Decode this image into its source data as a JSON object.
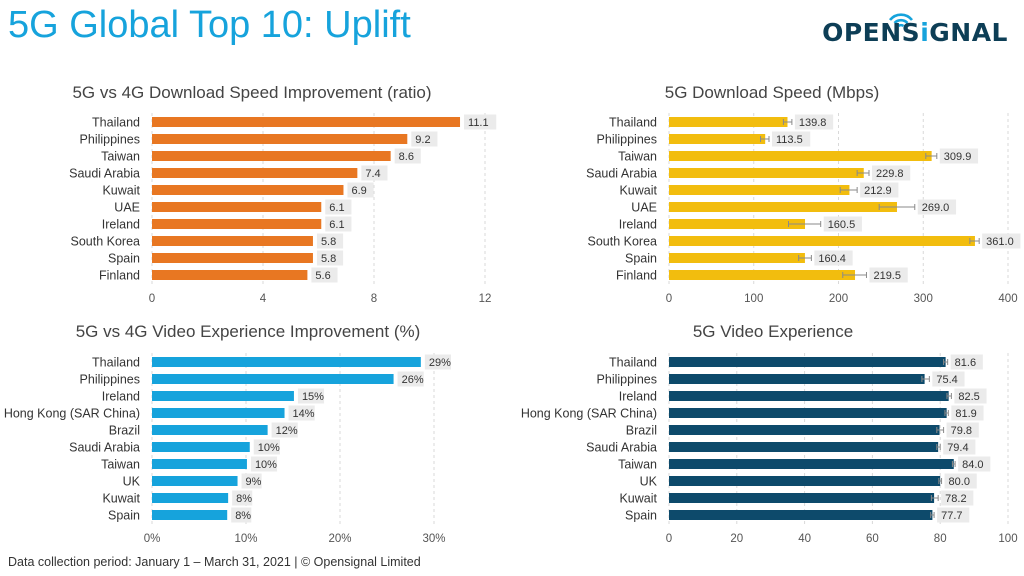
{
  "header": {
    "title": "5G Global Top 10: Uplift",
    "logo": {
      "text_before": "OPENS",
      "text_i": "i",
      "text_after": "GNAL",
      "icon": "signal-wifi-icon"
    }
  },
  "footer": {
    "text": "Data collection period: January 1 – March 31, 2021  |  © Opensignal Limited"
  },
  "colors": {
    "title": "#16a3dc",
    "orange": "#e87722",
    "yellow": "#f2bd0e",
    "cyan": "#16a3dc",
    "navy": "#0d4a6b",
    "label_bg": "#ebebeb",
    "logo": "#0d3e56"
  },
  "chart_data": [
    {
      "id": "c1",
      "type": "bar",
      "orientation": "horizontal",
      "title": "5G vs 4G Download Speed Improvement (ratio)",
      "categories": [
        "Thailand",
        "Philippines",
        "Taiwan",
        "Saudi Arabia",
        "Kuwait",
        "UAE",
        "Ireland",
        "South Korea",
        "Spain",
        "Finland"
      ],
      "values": [
        11.1,
        9.2,
        8.6,
        7.4,
        6.9,
        6.1,
        6.1,
        5.8,
        5.8,
        5.6
      ],
      "labels": [
        "11.1",
        "9.2",
        "8.6",
        "7.4",
        "6.9",
        "6.1",
        "6.1",
        "5.8",
        "5.8",
        "5.6"
      ],
      "xlim": [
        0,
        12
      ],
      "ticks": [
        0,
        4,
        8,
        12
      ],
      "tick_labels": [
        "0",
        "4",
        "8",
        "12"
      ],
      "color": "#e87722",
      "grid": true,
      "error_bars": false
    },
    {
      "id": "c2",
      "type": "bar",
      "orientation": "horizontal",
      "title": "5G Download Speed (Mbps)",
      "categories": [
        "Thailand",
        "Philippines",
        "Taiwan",
        "Saudi Arabia",
        "Kuwait",
        "UAE",
        "Ireland",
        "South Korea",
        "Spain",
        "Finland"
      ],
      "values": [
        139.8,
        113.5,
        309.9,
        229.8,
        212.9,
        269.0,
        160.5,
        361.0,
        160.4,
        219.5
      ],
      "labels": [
        "139.8",
        "113.5",
        "309.9",
        "229.8",
        "212.9",
        "269.0",
        "160.5",
        "361.0",
        "160.4",
        "219.5"
      ],
      "errors": [
        [
          135,
          145
        ],
        [
          108,
          118
        ],
        [
          303,
          316
        ],
        [
          222,
          236
        ],
        [
          202,
          222
        ],
        [
          248,
          290
        ],
        [
          141,
          179
        ],
        [
          355,
          366
        ],
        [
          153,
          168
        ],
        [
          205,
          233
        ]
      ],
      "xlim": [
        0,
        400
      ],
      "ticks": [
        0,
        100,
        200,
        300,
        400
      ],
      "tick_labels": [
        "0",
        "100",
        "200",
        "300",
        "400"
      ],
      "color": "#f2bd0e",
      "grid": true,
      "error_bars": true
    },
    {
      "id": "c3",
      "type": "bar",
      "orientation": "horizontal",
      "title": "5G vs 4G Video Experience Improvement (%)",
      "categories": [
        "Thailand",
        "Philippines",
        "Ireland",
        "Hong Kong (SAR China)",
        "Brazil",
        "Saudi Arabia",
        "Taiwan",
        "UK",
        "Kuwait",
        "Spain"
      ],
      "values": [
        28.6,
        25.7,
        15.1,
        14.1,
        12.3,
        10.4,
        10.1,
        9.1,
        8.1,
        8.0
      ],
      "labels": [
        "29%",
        "26%",
        "15%",
        "14%",
        "12%",
        "10%",
        "10%",
        "9%",
        "8%",
        "8%"
      ],
      "xlim": [
        0,
        30
      ],
      "ticks": [
        0,
        10,
        20,
        30
      ],
      "tick_labels": [
        "0%",
        "10%",
        "20%",
        "30%"
      ],
      "color": "#16a3dc",
      "grid": true,
      "error_bars": false
    },
    {
      "id": "c4",
      "type": "bar",
      "orientation": "horizontal",
      "title": "5G Video Experience",
      "categories": [
        "Thailand",
        "Philippines",
        "Ireland",
        "Hong Kong (SAR China)",
        "Brazil",
        "Saudi Arabia",
        "Taiwan",
        "UK",
        "Kuwait",
        "Spain"
      ],
      "values": [
        81.6,
        75.4,
        82.5,
        81.9,
        79.8,
        79.4,
        84.0,
        80.0,
        78.2,
        77.7
      ],
      "labels": [
        "81.6",
        "75.4",
        "82.5",
        "81.9",
        "79.8",
        "79.4",
        "84.0",
        "80.0",
        "78.2",
        "77.7"
      ],
      "errors": [
        [
          81.0,
          82.2
        ],
        [
          74.6,
          76.8
        ],
        [
          82.0,
          83.3
        ],
        [
          81.4,
          82.4
        ],
        [
          79.0,
          81.0
        ],
        [
          79.0,
          80.0
        ],
        [
          83.6,
          84.4
        ],
        [
          79.6,
          80.4
        ],
        [
          77.4,
          79.4
        ],
        [
          77.2,
          78.2
        ]
      ],
      "xlim": [
        0,
        100
      ],
      "ticks": [
        0,
        20,
        40,
        60,
        80,
        100
      ],
      "tick_labels": [
        "0",
        "20",
        "40",
        "60",
        "80",
        "100"
      ],
      "color": "#0d4a6b",
      "grid": true,
      "error_bars": true
    }
  ]
}
